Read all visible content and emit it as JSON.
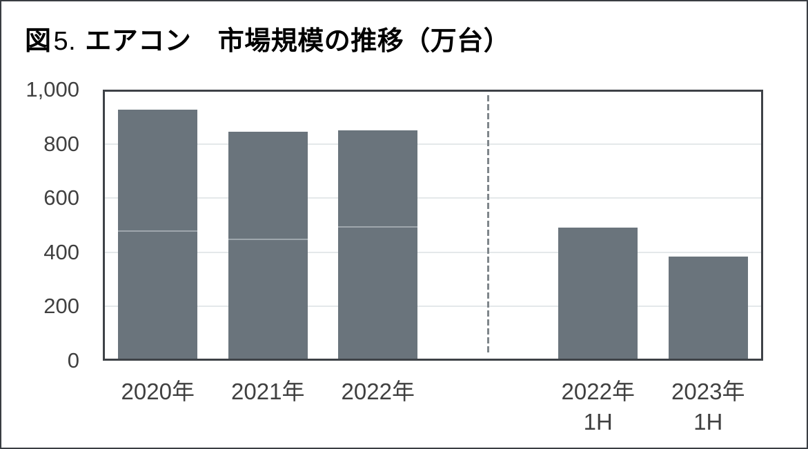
{
  "title": {
    "figure_label": "図",
    "figure_number": "5.",
    "text": "エアコン　市場規模の推移（万台）"
  },
  "chart_data": {
    "type": "bar",
    "title": "図5. エアコン　市場規模の推移（万台）",
    "unit": "万台",
    "ylim": [
      0,
      1000
    ],
    "ytick_interval": 200,
    "grid": true,
    "legend": false,
    "yticks": [
      {
        "value": 0,
        "label": "0"
      },
      {
        "value": 200,
        "label": "200"
      },
      {
        "value": 400,
        "label": "400"
      },
      {
        "value": 600,
        "label": "600"
      },
      {
        "value": 800,
        "label": "800"
      },
      {
        "value": 1000,
        "label": "1,000"
      }
    ],
    "bars": [
      {
        "category": "2020年",
        "sub": "",
        "total": 925,
        "segments": [
          475,
          450
        ],
        "separator": false
      },
      {
        "category": "2021年",
        "sub": "",
        "total": 845,
        "segments": [
          445,
          400
        ],
        "separator": false
      },
      {
        "category": "2022年",
        "sub": "",
        "total": 850,
        "segments": [
          490,
          360
        ],
        "separator": false
      },
      {
        "category": "",
        "sub": "",
        "total": null,
        "segments": [],
        "separator": true
      },
      {
        "category": "2022年",
        "sub": "1H",
        "total": 490,
        "segments": [
          490
        ],
        "separator": false
      },
      {
        "category": "2023年",
        "sub": "1H",
        "total": 385,
        "segments": [
          385
        ],
        "separator": false
      }
    ]
  },
  "colors": {
    "bar_fill": "#6a747c",
    "bar_segment_divider": "#9fa7ad",
    "gridline": "#e4e8ea",
    "plot_border": "#3e4247",
    "outer_border": "#393d42",
    "dashed_separator": "#7f868b",
    "axis_text": "#404040",
    "title_text": "#000000"
  }
}
